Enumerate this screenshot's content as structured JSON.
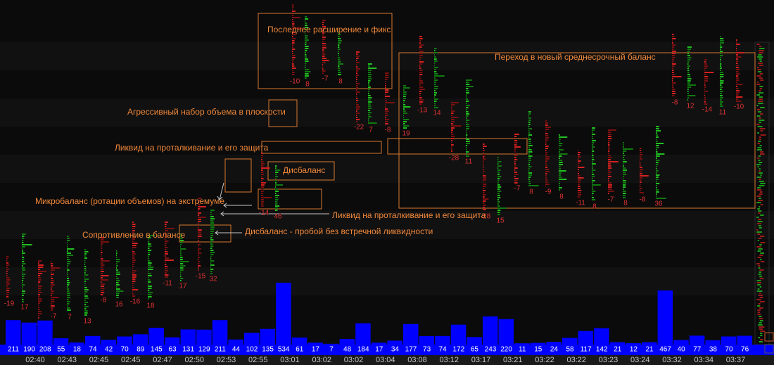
{
  "annotations": [
    "Последнее расширение и фикс",
    "Переход в новый среднесрочный баланс",
    "Агрессивный набор объема в плоскости",
    "Ликвид на проталкивание и его защита",
    "Дисбаланс",
    "Микробаланс (ротации объемов) на экстремуме",
    "Ликвид на проталкивание и его защита",
    "Сопротивление в балансе",
    "Дисбаланс - пробой без встречной ликвидности"
  ],
  "deltas": [
    -19,
    17,
    -23,
    -7,
    7,
    13,
    -8,
    16,
    -16,
    18,
    -11,
    17,
    -15,
    32,
    -14,
    46,
    -10,
    8,
    -7,
    8,
    -22,
    7,
    -8,
    19,
    -13,
    14,
    -28,
    11,
    -28,
    15,
    -7,
    8,
    -9,
    8,
    -11,
    8,
    -7,
    8,
    -8,
    36,
    -8,
    12,
    -14,
    11,
    -10
  ],
  "volume": {
    "color": "#0000ff",
    "values": [
      211,
      190,
      208,
      55,
      18,
      74,
      42,
      70,
      89,
      145,
      63,
      131,
      129,
      211,
      44,
      102,
      135,
      534,
      61,
      17,
      7,
      48,
      184,
      17,
      34,
      177,
      73,
      74,
      172,
      65,
      243,
      220,
      11,
      15,
      24,
      58,
      117,
      142,
      21,
      12,
      21,
      467,
      40,
      77,
      38,
      70,
      76
    ]
  },
  "time_labels": [
    "02:40",
    "02:43",
    "02:45",
    "02:45",
    "02:47",
    "02:50",
    "02:53",
    "02:55",
    "03:01",
    "03:02",
    "03:02",
    "03:04",
    "03:08",
    "03:12",
    "03:17",
    "03:21",
    "03:22",
    "03:22",
    "03:23",
    "03:24",
    "03:32",
    "03:34",
    "03:37"
  ]
}
